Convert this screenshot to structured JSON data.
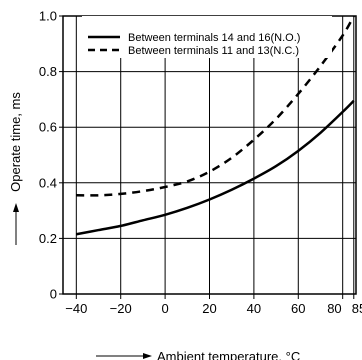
{
  "chart_data": {
    "type": "line",
    "title": "",
    "xlabel": "Ambient temperature, °C",
    "ylabel": "Operate time, ms",
    "xlim": [
      -46,
      86
    ],
    "ylim": [
      0,
      1.0
    ],
    "x_ticks": [
      -40,
      -20,
      0,
      20,
      40,
      60,
      80,
      85
    ],
    "x_tick_labels": [
      "−40",
      "−20",
      "0",
      "20",
      "40",
      "60",
      "80",
      "85"
    ],
    "y_ticks": [
      0,
      0.2,
      0.4,
      0.6,
      0.8,
      1.0
    ],
    "y_tick_labels": [
      "0",
      "0.2",
      "0.4",
      "0.6",
      "0.8",
      "1.0"
    ],
    "grid": true,
    "legend_position": "top-left",
    "series": [
      {
        "name": "Between terminals 14 and 16(N.O.)",
        "style": "solid",
        "color": "#000000",
        "x": [
          -40,
          -30,
          -20,
          -10,
          0,
          10,
          20,
          30,
          40,
          50,
          60,
          70,
          80,
          85
        ],
        "y": [
          0.215,
          0.23,
          0.245,
          0.265,
          0.285,
          0.31,
          0.34,
          0.375,
          0.415,
          0.46,
          0.515,
          0.58,
          0.655,
          0.695
        ]
      },
      {
        "name": "Between terminals 11 and 13(N.C.)",
        "style": "dashed",
        "color": "#000000",
        "x": [
          -40,
          -30,
          -20,
          -10,
          0,
          10,
          20,
          30,
          40,
          50,
          60,
          70,
          80,
          85
        ],
        "y": [
          0.355,
          0.355,
          0.36,
          0.37,
          0.385,
          0.405,
          0.44,
          0.49,
          0.555,
          0.63,
          0.72,
          0.82,
          0.93,
          1.0
        ]
      }
    ]
  }
}
